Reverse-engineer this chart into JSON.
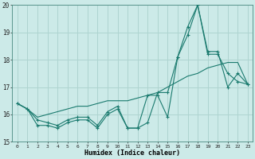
{
  "xlabel": "Humidex (Indice chaleur)",
  "xlim": [
    -0.5,
    23.5
  ],
  "ylim": [
    15,
    20
  ],
  "yticks": [
    15,
    16,
    17,
    18,
    19,
    20
  ],
  "xticks": [
    0,
    1,
    2,
    3,
    4,
    5,
    6,
    7,
    8,
    9,
    10,
    11,
    12,
    13,
    14,
    15,
    16,
    17,
    18,
    19,
    20,
    21,
    22,
    23
  ],
  "background_color": "#cceae8",
  "grid_color": "#aed4d0",
  "line_color": "#1a7a6e",
  "line1_x": [
    0,
    1,
    2,
    3,
    4,
    5,
    6,
    7,
    8,
    9,
    10,
    11,
    12,
    13,
    14,
    15,
    16,
    17,
    18,
    19,
    20,
    21,
    22,
    23
  ],
  "line1_y": [
    16.4,
    16.2,
    15.6,
    15.6,
    15.5,
    15.7,
    15.8,
    15.8,
    15.5,
    16.0,
    16.2,
    15.5,
    15.5,
    16.7,
    16.7,
    15.9,
    18.1,
    18.9,
    20.0,
    18.2,
    18.2,
    17.5,
    17.2,
    17.1
  ],
  "line2_x": [
    0,
    1,
    2,
    3,
    4,
    5,
    6,
    7,
    8,
    9,
    10,
    11,
    12,
    13,
    14,
    15,
    16,
    17,
    18,
    19,
    20,
    21,
    22,
    23
  ],
  "line2_y": [
    16.4,
    16.2,
    15.9,
    16.0,
    16.1,
    16.2,
    16.3,
    16.3,
    16.4,
    16.5,
    16.5,
    16.5,
    16.6,
    16.7,
    16.8,
    17.0,
    17.2,
    17.4,
    17.5,
    17.7,
    17.8,
    17.9,
    17.9,
    17.1
  ],
  "line3_x": [
    0,
    1,
    2,
    3,
    4,
    5,
    6,
    7,
    8,
    9,
    10,
    11,
    12,
    13,
    14,
    15,
    16,
    17,
    18,
    19,
    20,
    21,
    22,
    23
  ],
  "line3_y": [
    16.4,
    16.2,
    15.8,
    15.7,
    15.6,
    15.8,
    15.9,
    15.9,
    15.6,
    16.1,
    16.3,
    15.5,
    15.5,
    15.7,
    16.8,
    16.8,
    18.1,
    19.2,
    20.0,
    18.3,
    18.3,
    17.0,
    17.5,
    17.1
  ]
}
